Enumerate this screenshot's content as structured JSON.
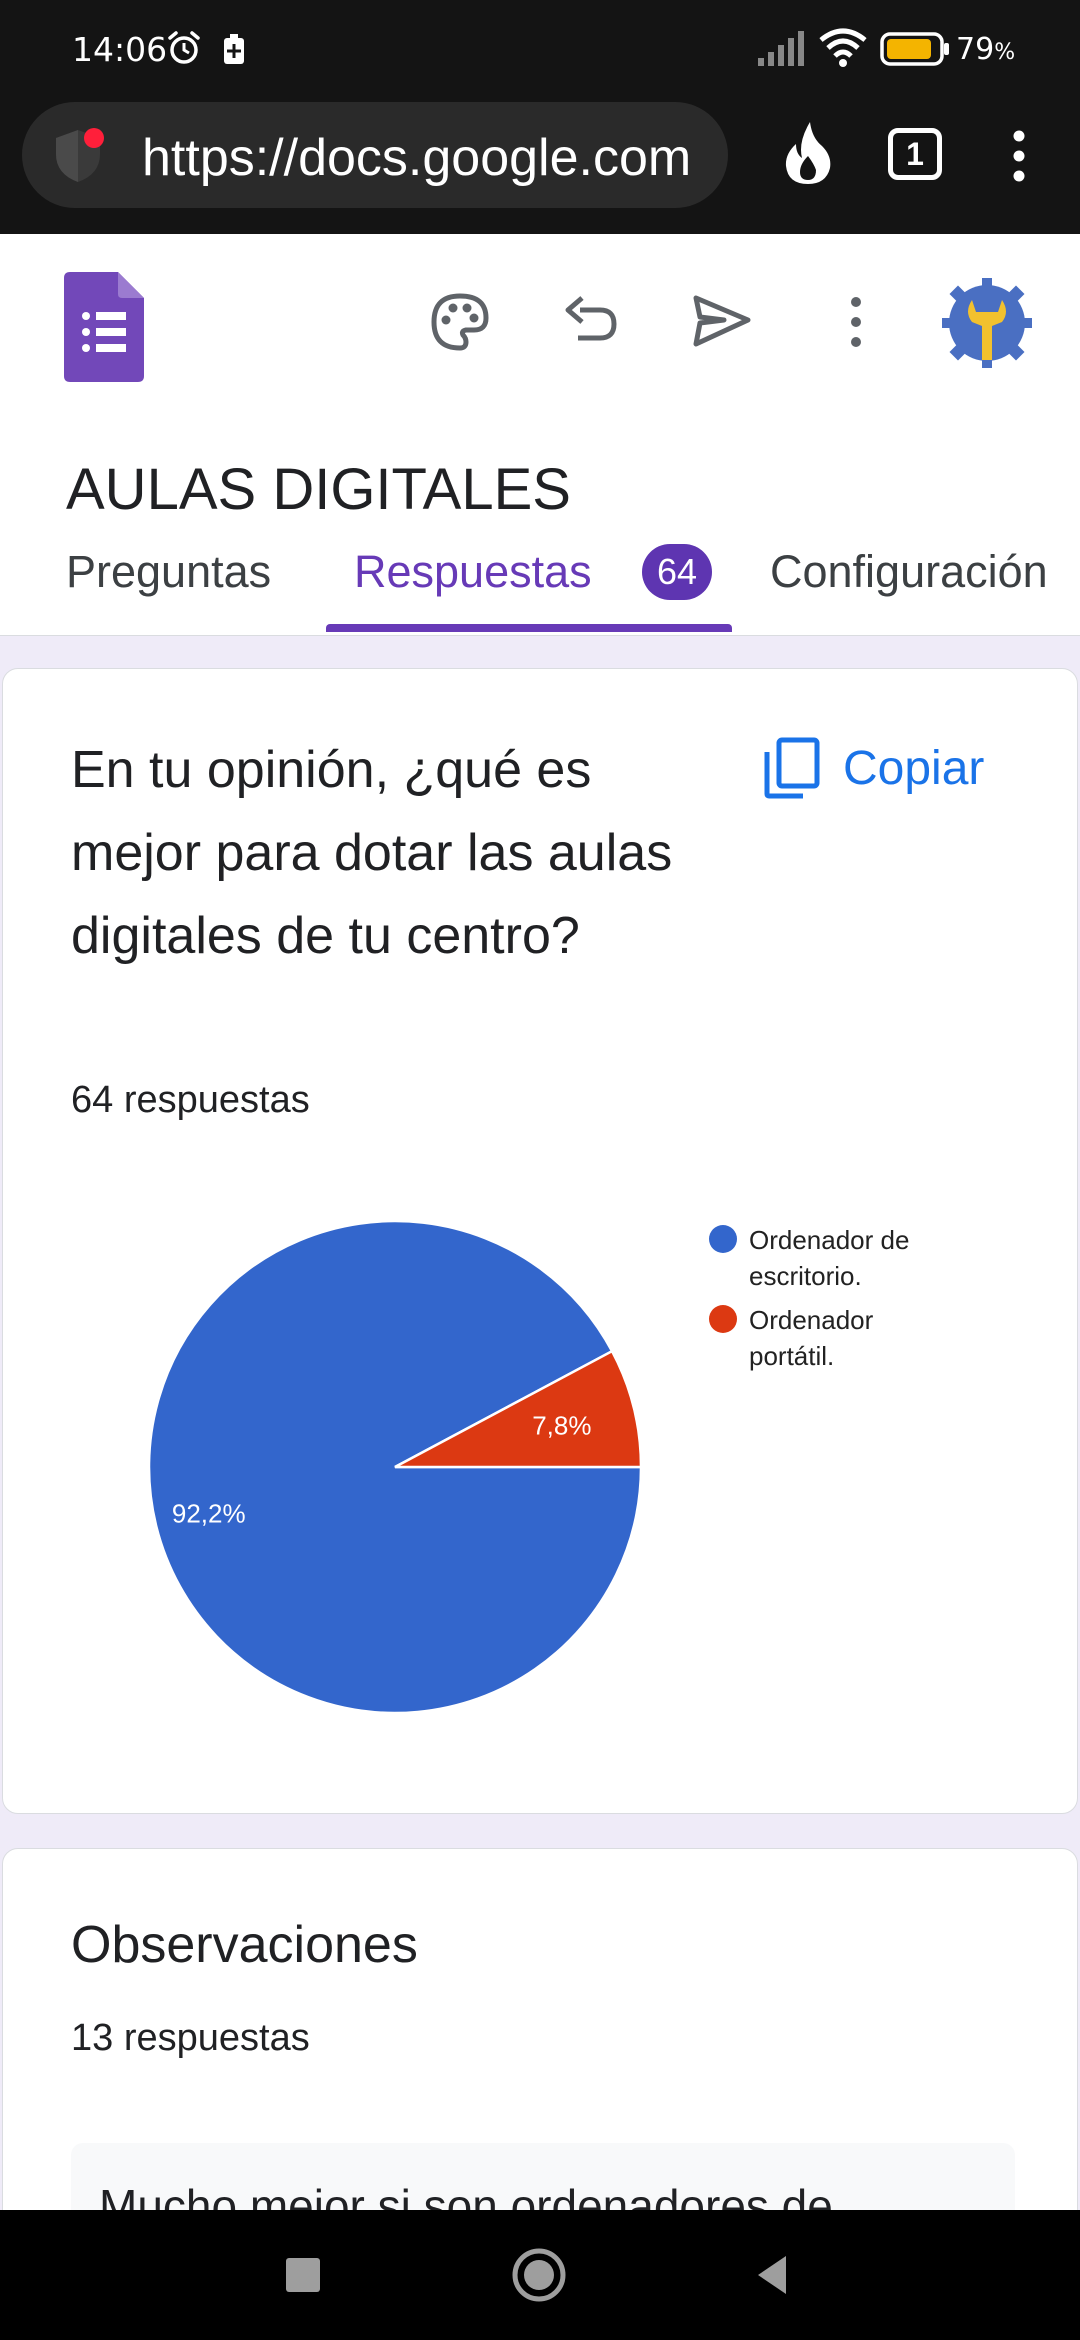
{
  "status_bar": {
    "time": "14:06",
    "battery_percent": "79",
    "battery_percent_suffix": "%"
  },
  "browser": {
    "url": "https://docs.google.com",
    "tab_count": "1"
  },
  "form": {
    "title": "AULAS DIGITALES",
    "tabs": [
      {
        "label": "Preguntas",
        "active": false
      },
      {
        "label": "Respuestas",
        "active": true,
        "badge": "64"
      },
      {
        "label": "Configuración",
        "active": false
      }
    ]
  },
  "question_card": {
    "question": "En tu opinión, ¿qué es mejor para dotar las aulas digitales de tu centro?",
    "copy_label": "Copiar",
    "response_count": "64 respuestas"
  },
  "chart_data": {
    "type": "pie",
    "categories": [
      "Ordenador de escritorio.",
      "Ordenador portátil."
    ],
    "values": [
      92.2,
      7.8
    ],
    "labels": [
      "92,2%",
      "7,8%"
    ],
    "colors": [
      "#3366cc",
      "#dc3912"
    ],
    "legend_lines": [
      [
        "Ordenador de",
        "escritorio."
      ],
      [
        "Ordenador",
        "portátil."
      ]
    ],
    "legend_position": "right"
  },
  "observations_card": {
    "title": "Observaciones",
    "response_count": "13 respuestas",
    "first_response_visible": "Mucho mejor si son ordenadores de"
  },
  "colors": {
    "accent": "#673ab7",
    "link": "#1a73e8",
    "background": "#efebf8"
  }
}
